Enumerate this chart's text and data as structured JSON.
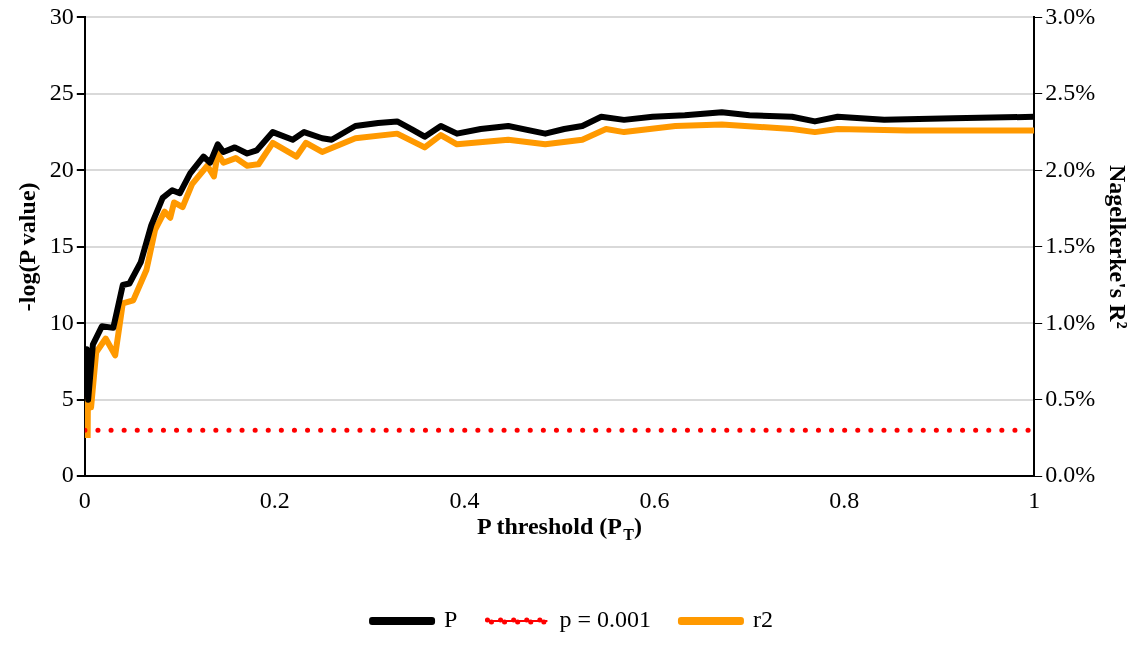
{
  "chart_data": {
    "type": "line",
    "xlabel": "P threshold (P$_{T}$)",
    "ylabel": "-log(P value)",
    "y2label": "Nagelkerke's R²",
    "xlim": [
      0,
      1
    ],
    "xticks": [
      0,
      0.2,
      0.4,
      0.6,
      0.8,
      1
    ],
    "ylim": [
      0,
      30
    ],
    "yticks": [
      0,
      5,
      10,
      15,
      20,
      25,
      30
    ],
    "y2lim": [
      0,
      3
    ],
    "y2ticks": [
      {
        "value": 0,
        "label": "0.0%"
      },
      {
        "value": 0.5,
        "label": "0.5%"
      },
      {
        "value": 1,
        "label": "1.0%"
      },
      {
        "value": 1.5,
        "label": "1.5%"
      },
      {
        "value": 2,
        "label": "2.0%"
      },
      {
        "value": 2.5,
        "label": "2.5%"
      },
      {
        "value": 3,
        "label": "3.0%"
      }
    ],
    "grid": "y",
    "legend": "bottom",
    "marker": "none",
    "series": [
      {
        "name": "P",
        "color": "#000000",
        "line_style": "solid",
        "x": [
          0,
          0.002,
          0.0035,
          0.0085,
          0.018,
          0.03,
          0.04,
          0.047,
          0.059,
          0.07,
          0.082,
          0.092,
          0.1,
          0.111,
          0.125,
          0.132,
          0.14,
          0.146,
          0.158,
          0.171,
          0.181,
          0.198,
          0.219,
          0.231,
          0.25,
          0.26,
          0.285,
          0.309,
          0.329,
          0.344,
          0.358,
          0.375,
          0.392,
          0.417,
          0.446,
          0.485,
          0.505,
          0.524,
          0.544,
          0.568,
          0.598,
          0.632,
          0.671,
          0.7,
          0.745,
          0.769,
          0.793,
          0.842,
          0.915,
          1
        ],
        "values": [
          6,
          8.3,
          5,
          8.6,
          9.8,
          9.7,
          12.5,
          12.6,
          14,
          16.4,
          18.2,
          18.7,
          18.5,
          19.8,
          20.9,
          20.5,
          21.7,
          21.2,
          21.5,
          21.1,
          21.3,
          22.5,
          22,
          22.5,
          22.1,
          22,
          22.9,
          23.1,
          23.2,
          22.7,
          22.2,
          22.9,
          22.4,
          22.7,
          22.9,
          22.4,
          22.7,
          22.9,
          23.5,
          23.3,
          23.5,
          23.6,
          23.8,
          23.6,
          23.5,
          23.2,
          23.5,
          23.3,
          23.4,
          23.5
        ]
      },
      {
        "name": "p = 0.001",
        "color": "#ff0000",
        "line_style": "dotted",
        "x": [
          0,
          1
        ],
        "values": [
          3,
          3
        ]
      },
      {
        "name": "r2",
        "color": "#ff9900",
        "line_style": "solid",
        "axis": "y2",
        "x": [
          0.003,
          0.0035,
          0.0066,
          0.012,
          0.022,
          0.032,
          0.04,
          0.051,
          0.065,
          0.074,
          0.084,
          0.09,
          0.094,
          0.103,
          0.113,
          0.129,
          0.136,
          0.14,
          0.146,
          0.159,
          0.171,
          0.183,
          0.198,
          0.223,
          0.233,
          0.25,
          0.285,
          0.329,
          0.358,
          0.375,
          0.392,
          0.446,
          0.485,
          0.524,
          0.549,
          0.568,
          0.622,
          0.671,
          0.745,
          0.769,
          0.793,
          0.866,
          1
        ],
        "values": [
          0.25,
          0.72,
          0.45,
          0.81,
          0.9,
          0.79,
          1.13,
          1.15,
          1.35,
          1.61,
          1.73,
          1.69,
          1.79,
          1.76,
          1.91,
          2.03,
          1.96,
          2.11,
          2.05,
          2.08,
          2.03,
          2.04,
          2.18,
          2.09,
          2.18,
          2.12,
          2.21,
          2.24,
          2.15,
          2.23,
          2.17,
          2.2,
          2.17,
          2.2,
          2.27,
          2.25,
          2.29,
          2.3,
          2.27,
          2.25,
          2.27,
          2.26,
          2.26
        ]
      }
    ]
  }
}
